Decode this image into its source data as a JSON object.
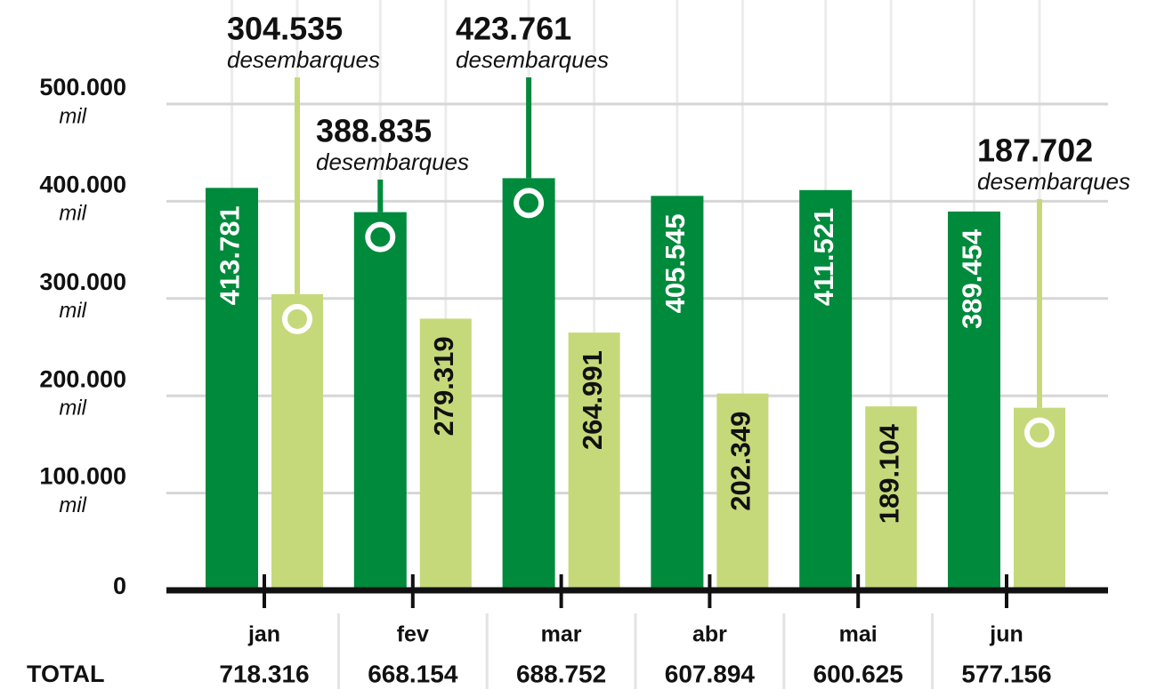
{
  "chart_data": {
    "type": "bar",
    "categories": [
      "jan",
      "fev",
      "mar",
      "abr",
      "mai",
      "jun"
    ],
    "series": [
      {
        "color": "#008a3c",
        "label_color": "#ffffff",
        "values": [
          413781,
          388835,
          423761,
          405545,
          411521,
          389454
        ],
        "value_labels": [
          "413.781",
          "388.835",
          "423.761",
          "405.545",
          "411.521",
          "389.454"
        ],
        "callout": [
          false,
          true,
          true,
          false,
          false,
          false
        ]
      },
      {
        "color": "#c5d97a",
        "label_color": "#111111",
        "values": [
          304535,
          279319,
          264991,
          202349,
          189104,
          187702
        ],
        "value_labels": [
          "304.535",
          "279.319",
          "264.991",
          "202.349",
          "189.104",
          "187.702"
        ],
        "callout": [
          true,
          false,
          false,
          false,
          false,
          true
        ]
      }
    ],
    "callout_text": "desembarques",
    "ylim": [
      0,
      500000
    ],
    "yticks": [
      {
        "value": 0,
        "label": "0"
      },
      {
        "value": 100000,
        "label": "100.000"
      },
      {
        "value": 200000,
        "label": "200.000"
      },
      {
        "value": 300000,
        "label": "300.000"
      },
      {
        "value": 400000,
        "label": "400.000"
      },
      {
        "value": 500000,
        "label": "500.000"
      }
    ],
    "ytick_unit": "mil",
    "grid": true,
    "total_title": "TOTAL",
    "totals": [
      "718.316",
      "668.154",
      "688.752",
      "607.894",
      "600.625",
      "577.156"
    ]
  }
}
